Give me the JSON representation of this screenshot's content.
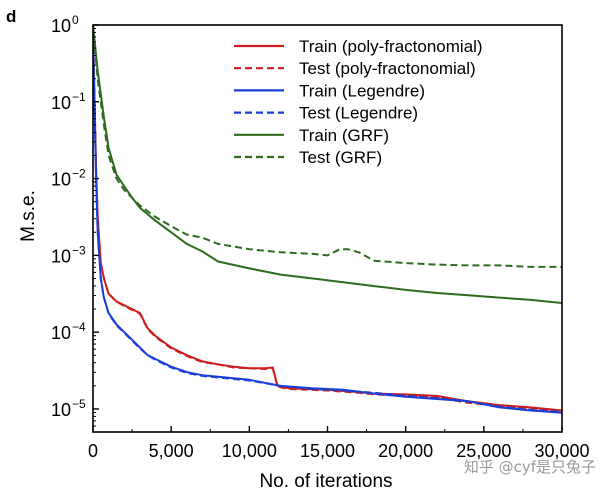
{
  "panel_label": "d",
  "watermark": "知乎 @cyf是只兔子",
  "chart_data": {
    "type": "line",
    "title": "",
    "xlabel": "No. of iterations",
    "ylabel": "M.s.e.",
    "xscale": "linear",
    "yscale": "log",
    "xlim": [
      0,
      30000
    ],
    "ylim_exponent": [
      -5.3,
      0
    ],
    "x_ticks": [
      0,
      5000,
      10000,
      15000,
      20000,
      25000,
      30000
    ],
    "x_tick_labels": [
      "0",
      "5,000",
      "10,000",
      "15,000",
      "20,000",
      "25,000",
      "30,000"
    ],
    "y_ticks_exponent": [
      0,
      -1,
      -2,
      -3,
      -4,
      -5
    ],
    "y_tick_bases": [
      "10",
      "10",
      "10",
      "10",
      "10",
      "10"
    ],
    "y_tick_exps": [
      "0",
      "−1",
      "−2",
      "−3",
      "−4",
      "−5"
    ],
    "grid": false,
    "legend_position": "top-right",
    "value_note": "y values are log10(M.s.e.)",
    "series": [
      {
        "name": "Train (poly-fractonomial)",
        "color": "#cc1f1f",
        "dash": "solid",
        "x": [
          0,
          100,
          200,
          300,
          500,
          700,
          1000,
          1500,
          2000,
          2500,
          3000,
          3500,
          4000,
          5000,
          6000,
          7000,
          8000,
          9000,
          10000,
          11000,
          11500,
          11800,
          12500,
          15000,
          17000,
          18000,
          20000,
          22000,
          24000,
          26000,
          28000,
          30000
        ],
        "y": [
          -0.1,
          -1.0,
          -1.9,
          -2.5,
          -3.1,
          -3.3,
          -3.5,
          -3.6,
          -3.65,
          -3.7,
          -3.75,
          -3.95,
          -4.05,
          -4.2,
          -4.3,
          -4.38,
          -4.42,
          -4.45,
          -4.47,
          -4.47,
          -4.46,
          -4.7,
          -4.73,
          -4.75,
          -4.78,
          -4.8,
          -4.81,
          -4.83,
          -4.9,
          -4.95,
          -4.98,
          -5.02
        ]
      },
      {
        "name": "Test (poly-fractonomial)",
        "color": "#cc1f1f",
        "dash": "dashed",
        "x": [
          0,
          100,
          200,
          300,
          500,
          700,
          1000,
          1500,
          2000,
          2500,
          3000,
          3500,
          4000,
          5000,
          6000,
          7000,
          8000,
          9000,
          10000,
          11000,
          11500,
          11800,
          12500,
          15000,
          17000,
          18000,
          20000,
          22000,
          24000,
          26000,
          28000,
          30000
        ],
        "y": [
          -0.1,
          -1.0,
          -1.9,
          -2.5,
          -3.1,
          -3.3,
          -3.5,
          -3.6,
          -3.66,
          -3.71,
          -3.76,
          -3.96,
          -4.06,
          -4.21,
          -4.31,
          -4.39,
          -4.42,
          -4.46,
          -4.47,
          -4.48,
          -4.47,
          -4.71,
          -4.74,
          -4.76,
          -4.79,
          -4.81,
          -4.83,
          -4.85,
          -4.92,
          -4.96,
          -4.99,
          -5.03
        ]
      },
      {
        "name": "Train (Legendre)",
        "color": "#1a3fd6",
        "dash": "solid",
        "x": [
          0,
          100,
          200,
          300,
          500,
          700,
          1000,
          1500,
          2000,
          2500,
          3000,
          3500,
          4000,
          5000,
          6000,
          7000,
          8000,
          9000,
          10000,
          12000,
          14000,
          16000,
          18000,
          20000,
          22000,
          24000,
          26000,
          28000,
          30000
        ],
        "y": [
          -0.1,
          -1.1,
          -2.0,
          -2.7,
          -3.3,
          -3.55,
          -3.75,
          -3.9,
          -4.0,
          -4.1,
          -4.2,
          -4.3,
          -4.35,
          -4.45,
          -4.52,
          -4.56,
          -4.58,
          -4.6,
          -4.62,
          -4.7,
          -4.73,
          -4.75,
          -4.8,
          -4.84,
          -4.87,
          -4.9,
          -4.98,
          -5.02,
          -5.05
        ]
      },
      {
        "name": "Test (Legendre)",
        "color": "#1a3fd6",
        "dash": "dashed",
        "x": [
          0,
          100,
          200,
          300,
          500,
          700,
          1000,
          1500,
          2000,
          2500,
          3000,
          3500,
          4000,
          5000,
          6000,
          7000,
          8000,
          9000,
          10000,
          12000,
          14000,
          16000,
          18000,
          20000,
          22000,
          24000,
          26000,
          28000,
          30000
        ],
        "y": [
          -0.1,
          -1.1,
          -2.0,
          -2.7,
          -3.3,
          -3.55,
          -3.76,
          -3.91,
          -4.01,
          -4.11,
          -4.21,
          -4.3,
          -4.36,
          -4.46,
          -4.53,
          -4.57,
          -4.59,
          -4.61,
          -4.63,
          -4.7,
          -4.74,
          -4.76,
          -4.79,
          -4.83,
          -4.86,
          -4.9,
          -4.97,
          -5.01,
          -5.04
        ]
      },
      {
        "name": "Train (GRF)",
        "color": "#2e6b1f",
        "dash": "solid",
        "x": [
          0,
          300,
          700,
          1000,
          1500,
          2000,
          2500,
          3000,
          4000,
          5000,
          6000,
          7000,
          8000,
          10000,
          12000,
          14000,
          16000,
          18000,
          20000,
          22000,
          24000,
          26000,
          28000,
          30000
        ],
        "y": [
          0.0,
          -0.6,
          -1.2,
          -1.6,
          -1.95,
          -2.1,
          -2.25,
          -2.38,
          -2.55,
          -2.7,
          -2.85,
          -2.95,
          -3.08,
          -3.17,
          -3.25,
          -3.3,
          -3.35,
          -3.4,
          -3.45,
          -3.49,
          -3.52,
          -3.55,
          -3.58,
          -3.62
        ]
      },
      {
        "name": "Test (GRF)",
        "color": "#2e6b1f",
        "dash": "dashed",
        "x": [
          0,
          300,
          700,
          1000,
          1500,
          2000,
          2500,
          3000,
          4000,
          5000,
          6000,
          7000,
          8000,
          10000,
          12000,
          14000,
          15000,
          15800,
          16300,
          17000,
          18000,
          20000,
          22000,
          24000,
          26000,
          28000,
          30000
        ],
        "y": [
          0.0,
          -0.7,
          -1.3,
          -1.7,
          -2.0,
          -2.15,
          -2.25,
          -2.35,
          -2.5,
          -2.62,
          -2.73,
          -2.77,
          -2.85,
          -2.92,
          -2.96,
          -2.98,
          -3.0,
          -2.92,
          -2.92,
          -2.96,
          -3.07,
          -3.1,
          -3.12,
          -3.13,
          -3.13,
          -3.15,
          -3.15
        ]
      }
    ]
  }
}
